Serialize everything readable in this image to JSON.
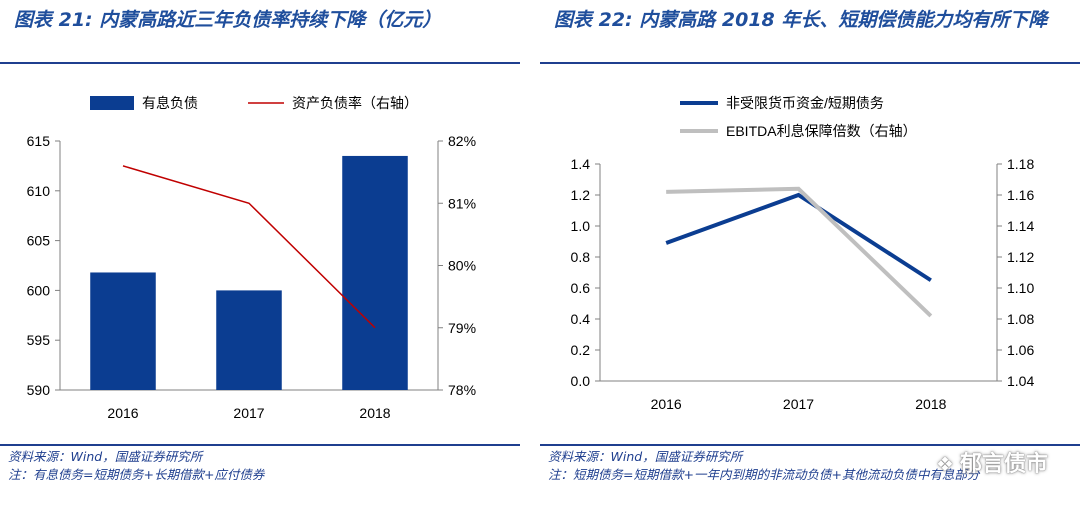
{
  "watermark": {
    "text": "郁言债市",
    "icon": "wechat-icon"
  },
  "chart_data": [
    {
      "type": "bar",
      "title": "图表 21: 内蒙高路近三年负债率持续下降（亿元）",
      "categories": [
        "2016",
        "2017",
        "2018"
      ],
      "series": [
        {
          "name": "有息负债",
          "type": "bar",
          "axis": "left",
          "values": [
            601.8,
            600.0,
            613.5
          ],
          "color": "#0b3d91"
        },
        {
          "name": "资产负债率（右轴）",
          "type": "line",
          "axis": "right",
          "values": [
            81.6,
            81.0,
            79.0
          ],
          "color": "#c00000"
        }
      ],
      "ylim": [
        590,
        615
      ],
      "yticks": [
        "590",
        "595",
        "600",
        "605",
        "610",
        "615"
      ],
      "y2lim": [
        78,
        82
      ],
      "y2ticks": [
        "78%",
        "79%",
        "80%",
        "81%",
        "82%"
      ],
      "legend": "top",
      "source": "资料来源：Wind，国盛证券研究所",
      "note": "注：有息债务=短期债务+长期借款+应付债券"
    },
    {
      "type": "line",
      "title": "图表 22: 内蒙高路 2018 年长、短期偿债能力均有所下降",
      "categories": [
        "2016",
        "2017",
        "2018"
      ],
      "series": [
        {
          "name": "非受限货币资金/短期债务",
          "axis": "left",
          "values": [
            0.89,
            1.2,
            0.65
          ],
          "color": "#0b3d91"
        },
        {
          "name": "EBITDA利息保障倍数（右轴）",
          "axis": "right",
          "values": [
            1.162,
            1.164,
            1.082
          ],
          "color": "#bfbfbf"
        }
      ],
      "ylim": [
        0.0,
        1.4
      ],
      "yticks": [
        "0.0",
        "0.2",
        "0.4",
        "0.6",
        "0.8",
        "1.0",
        "1.2",
        "1.4"
      ],
      "y2lim": [
        1.04,
        1.18
      ],
      "y2ticks": [
        "1.04",
        "1.06",
        "1.08",
        "1.10",
        "1.12",
        "1.14",
        "1.16",
        "1.18"
      ],
      "legend": "top",
      "source": "资料来源：Wind，国盛证券研究所",
      "note": "注：短期债务=短期借款+一年内到期的非流动负债+其他流动负债中有息部分"
    }
  ]
}
